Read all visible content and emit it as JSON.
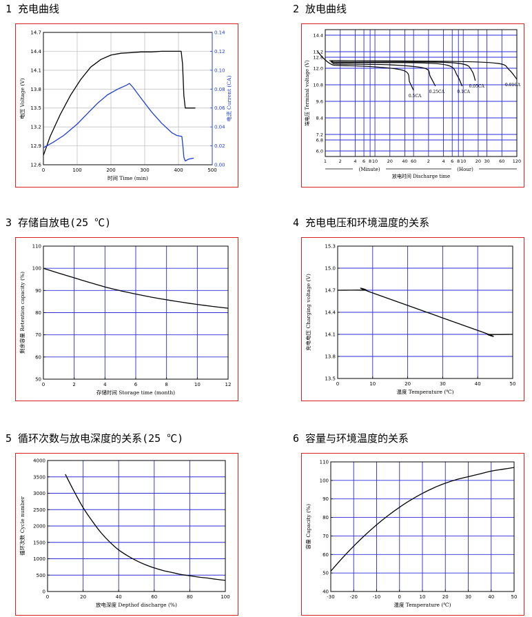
{
  "headings": {
    "c1": "1 充电曲线",
    "c2": "2 放电曲线",
    "c3": "3 存储自放电(25 ℃)",
    "c4": "4 充电电压和环境温度的关系",
    "c5": "5 循环次数与放电深度的关系(25 ℃)",
    "c6": "6 容量与环境温度的关系"
  },
  "colors": {
    "border": "#d92020",
    "grid_blue": "#2a2ad6",
    "curve": "#000000",
    "current_curve": "#1f3fd0"
  },
  "chart_data": [
    {
      "id": "c1",
      "type": "line",
      "xlabel": "时间 Time (min)",
      "ylabel": "电压 Voltage (V)",
      "y2label": "电流 Current (CA)",
      "xlim": [
        0,
        500
      ],
      "ylim": [
        12.6,
        14.7
      ],
      "y2lim": [
        0.0,
        0.14
      ],
      "xticks": [
        "0",
        "100",
        "200",
        "300",
        "400",
        "500"
      ],
      "yticks": [
        "12.6",
        "12.9",
        "13.2",
        "13.5",
        "13.8",
        "14.1",
        "14.4",
        "14.7"
      ],
      "y2ticks": [
        "0.00",
        "0.02",
        "0.04",
        "0.06",
        "0.08",
        "0.10",
        "0.12",
        "0.14"
      ],
      "grid": true,
      "series": [
        {
          "axis": "left",
          "x": [
            0,
            20,
            50,
            80,
            110,
            140,
            170,
            200,
            230,
            260,
            290,
            320,
            350,
            380,
            408,
            412,
            416,
            420,
            440,
            450
          ],
          "y": [
            12.75,
            13.05,
            13.4,
            13.7,
            13.95,
            14.15,
            14.27,
            14.34,
            14.37,
            14.38,
            14.39,
            14.39,
            14.4,
            14.4,
            14.4,
            14.2,
            13.7,
            13.5,
            13.5,
            13.5
          ]
        },
        {
          "axis": "right",
          "x": [
            0,
            30,
            60,
            100,
            130,
            160,
            190,
            220,
            245,
            255,
            265,
            290,
            320,
            350,
            380,
            395,
            410,
            413,
            416,
            420,
            430,
            445
          ],
          "y": [
            0.018,
            0.024,
            0.031,
            0.043,
            0.054,
            0.065,
            0.074,
            0.08,
            0.084,
            0.086,
            0.082,
            0.07,
            0.056,
            0.044,
            0.034,
            0.031,
            0.03,
            0.02,
            0.008,
            0.004,
            0.006,
            0.007
          ]
        }
      ]
    },
    {
      "id": "c2",
      "type": "line",
      "xlabel": "放电时间 Discharge time",
      "ylabel": "端电压 Terminal voltage (V)",
      "x_unit_labels": [
        "(Minute)",
        "(Hour)"
      ],
      "x_scale": "log",
      "xticks": [
        "1",
        "2",
        "4",
        "6",
        "8",
        "10",
        "20",
        "40",
        "60",
        "2",
        "4",
        "6",
        "8",
        "10",
        "20",
        "30",
        "60",
        "120"
      ],
      "xtick_minutes": [
        1,
        2,
        4,
        6,
        8,
        10,
        20,
        40,
        60,
        120,
        240,
        360,
        480,
        600,
        1200,
        1800,
        3600,
        7200
      ],
      "ylim": [
        5.6,
        14.8
      ],
      "yticks": [
        "6.0",
        "6.8",
        "7.2",
        "8.4",
        "9.6",
        "10.8",
        "12.0",
        "12.8",
        "13.2",
        "14.4"
      ],
      "ytick_values": [
        6.0,
        6.8,
        7.2,
        8.4,
        9.6,
        10.8,
        12.0,
        12.8,
        13.2,
        14.4
      ],
      "grid": true,
      "series": [
        {
          "name": "0.5CA",
          "x": [
            0.7,
            1,
            1.4,
            2,
            10,
            40,
            50,
            60
          ],
          "y": [
            13.2,
            12.6,
            12.25,
            12.2,
            12.1,
            11.8,
            11.0,
            10.4
          ]
        },
        {
          "name": "0.25CA",
          "x": [
            1.4,
            2,
            20,
            100,
            130,
            165
          ],
          "y": [
            12.35,
            12.3,
            12.25,
            12.0,
            11.4,
            10.7
          ]
        },
        {
          "name": "0.1CA",
          "x": [
            1.4,
            2,
            60,
            300,
            450,
            570
          ],
          "y": [
            12.45,
            12.4,
            12.4,
            12.2,
            11.5,
            10.7
          ]
        },
        {
          "name": "0.05CA",
          "x": [
            1.4,
            2,
            120,
            600,
            900,
            1050
          ],
          "y": [
            12.5,
            12.45,
            12.45,
            12.3,
            11.8,
            11.1
          ]
        },
        {
          "name": "0.01CA",
          "x": [
            1.4,
            2,
            300,
            3000,
            5000,
            7200
          ],
          "y": [
            12.55,
            12.55,
            12.5,
            12.35,
            11.9,
            11.2
          ]
        }
      ]
    },
    {
      "id": "c3",
      "type": "line",
      "xlabel": "存储时间 Storage time (month)",
      "ylabel": "剩余容量 Retention capacity (%)",
      "xlim": [
        0,
        12
      ],
      "ylim": [
        50,
        110
      ],
      "xticks": [
        "0",
        "2",
        "4",
        "6",
        "8",
        "10",
        "12"
      ],
      "yticks": [
        "50",
        "60",
        "70",
        "80",
        "90",
        "100",
        "110"
      ],
      "grid": true,
      "series": [
        {
          "x": [
            0,
            1,
            2,
            3,
            4,
            5,
            6,
            7,
            8,
            9,
            10,
            11,
            12
          ],
          "y": [
            100,
            97.8,
            95.7,
            93.6,
            91.6,
            89.9,
            88.4,
            87.0,
            85.8,
            84.7,
            83.7,
            82.8,
            82.0
          ]
        }
      ]
    },
    {
      "id": "c4",
      "type": "line",
      "xlabel": "温度 Temperature (℃)",
      "ylabel": "充电电压 Charging voltage (V)",
      "xlim": [
        0,
        50
      ],
      "ylim": [
        13.5,
        15.3
      ],
      "xticks": [
        "0",
        "10",
        "20",
        "30",
        "40",
        "50"
      ],
      "yticks": [
        "13.5",
        "13.8",
        "14.1",
        "14.4",
        "14.7",
        "15.0",
        "15.3"
      ],
      "grid": true,
      "series": [
        {
          "x": [
            0,
            8,
            9,
            42,
            43,
            50
          ],
          "y": [
            14.7,
            14.7,
            14.68,
            14.12,
            14.1,
            14.1
          ]
        }
      ]
    },
    {
      "id": "c5",
      "type": "line",
      "xlabel": "放电深度 Depthof discharge (%)",
      "ylabel": "循环次数 Cycle number",
      "xlim": [
        0,
        100
      ],
      "ylim": [
        0,
        4000
      ],
      "xticks": [
        "0",
        "20",
        "40",
        "60",
        "80",
        "100"
      ],
      "yticks": [
        "0",
        "500",
        "1000",
        "1500",
        "2000",
        "2500",
        "3000",
        "3500",
        "4000"
      ],
      "grid": true,
      "series": [
        {
          "x": [
            10,
            15,
            20,
            25,
            30,
            35,
            40,
            45,
            50,
            55,
            60,
            65,
            70,
            75,
            80,
            85,
            90,
            95,
            100
          ],
          "y": [
            3580,
            3050,
            2560,
            2160,
            1800,
            1510,
            1270,
            1090,
            940,
            820,
            720,
            640,
            580,
            520,
            480,
            440,
            410,
            370,
            340
          ]
        }
      ]
    },
    {
      "id": "c6",
      "type": "line",
      "xlabel": "温度 Temperature (℃)",
      "ylabel": "容量 Capacity (%)",
      "xlim": [
        -30,
        50
      ],
      "ylim": [
        40,
        110
      ],
      "xticks": [
        "-30",
        "-20",
        "-10",
        "0",
        "10",
        "20",
        "30",
        "40",
        "50"
      ],
      "yticks": [
        "40",
        "50",
        "60",
        "70",
        "80",
        "90",
        "100",
        "110"
      ],
      "grid": true,
      "series": [
        {
          "x": [
            -30,
            -25,
            -20,
            -15,
            -10,
            -5,
            0,
            5,
            10,
            15,
            20,
            25,
            30,
            35,
            40,
            45,
            50
          ],
          "y": [
            51,
            58,
            64.5,
            70.5,
            76,
            81,
            85.5,
            89.5,
            93,
            96,
            98.5,
            100.5,
            102,
            103.5,
            105,
            106,
            107
          ]
        }
      ]
    }
  ]
}
